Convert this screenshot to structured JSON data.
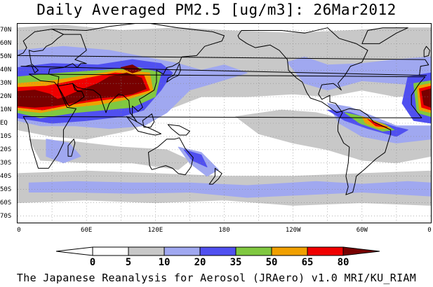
{
  "title": "Daily Averaged PM2.5 [ug/m3]: 26Mar2012",
  "lat_labels": [
    "70N",
    "60N",
    "50N",
    "40N",
    "30N",
    "20N",
    "10N",
    "EQ",
    "10S",
    "20S",
    "30S",
    "40S",
    "50S",
    "60S",
    "70S"
  ],
  "lat_values": [
    70,
    60,
    50,
    40,
    30,
    20,
    10,
    0,
    -10,
    -20,
    -30,
    -40,
    -50,
    -60,
    -70
  ],
  "lon_labels": [
    "0",
    "60E",
    "120E",
    "180",
    "120W",
    "60W",
    "0"
  ],
  "lon_values": [
    0,
    60,
    120,
    180,
    240,
    300,
    360
  ],
  "lat_range": [
    -75,
    75
  ],
  "lon_range": [
    0,
    360
  ],
  "legend": {
    "ticks": [
      "0",
      "5",
      "10",
      "20",
      "35",
      "50",
      "65",
      "80"
    ],
    "bins": [
      {
        "range": "<0",
        "color": "#ffffff"
      },
      {
        "range": "0-5",
        "color": "#ffffff"
      },
      {
        "range": "5-10",
        "color": "#c8c8c8"
      },
      {
        "range": "10-20",
        "color": "#a0a8f0"
      },
      {
        "range": "20-35",
        "color": "#5050f0"
      },
      {
        "range": "35-50",
        "color": "#80c840"
      },
      {
        "range": "50-65",
        "color": "#f0a000"
      },
      {
        "range": "65-80",
        "color": "#f00000"
      },
      {
        "range": ">80",
        "color": "#780000"
      }
    ]
  },
  "colors": {
    "gray": "#c8c8c8",
    "light_blue": "#a0a8f0",
    "blue": "#5050f0",
    "green": "#80c840",
    "orange": "#f0a000",
    "red": "#f00000",
    "maroon": "#780000",
    "coast": "#000000",
    "grid": "#888888"
  },
  "caption": "The Japanese Reanalysis for Aerosol (JRAero) v1.0 MRI/KU_RIAM"
}
